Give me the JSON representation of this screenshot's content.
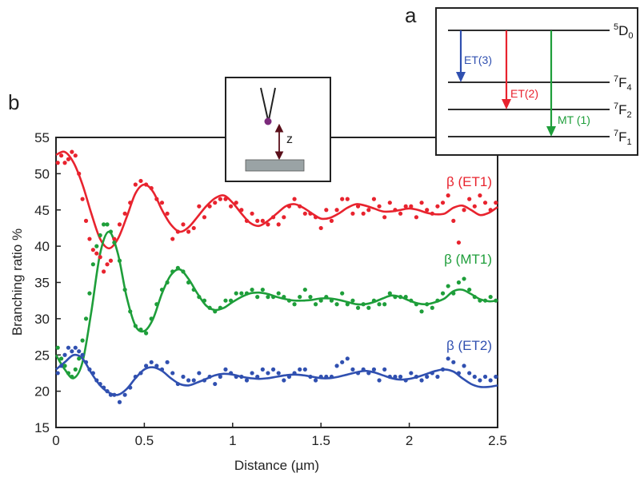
{
  "panel_labels": {
    "a": "a",
    "b": "b"
  },
  "colors": {
    "et1": "#e8232e",
    "mt1": "#1e9e3a",
    "et2": "#3050b0",
    "dark_arrow": "#5a0f1a",
    "substrate": "#9aa3a5",
    "tip_dot": "#7b2a7b"
  },
  "inset": {
    "z_label": "z"
  },
  "level_diagram": {
    "levels": [
      {
        "sup": "5",
        "main": "D",
        "sub": "0"
      },
      {
        "sup": "7",
        "main": "F",
        "sub": "4"
      },
      {
        "sup": "7",
        "main": "F",
        "sub": "2"
      },
      {
        "sup": "7",
        "main": "F",
        "sub": "1"
      }
    ],
    "transitions": [
      {
        "label": "ET(3)",
        "color": "#3050b0"
      },
      {
        "label": "ET(2)",
        "color": "#e8232e"
      },
      {
        "label": "MT (1)",
        "color": "#1e9e3a"
      }
    ]
  },
  "chart_data": {
    "type": "scatter",
    "title": "",
    "xlabel": "Distance (µm)",
    "ylabel": "Branching ratio %",
    "xlim": [
      0,
      2.5
    ],
    "ylim": [
      15,
      55
    ],
    "xticks": [
      "0",
      "0.5",
      "1",
      "1.5",
      "2",
      "2.5"
    ],
    "yticks": [
      "15",
      "20",
      "25",
      "30",
      "35",
      "40",
      "45",
      "50",
      "55"
    ],
    "grid": false,
    "series": [
      {
        "name": "β (ET1)",
        "color": "#e8232e",
        "fit": {
          "x": [
            0,
            0.05,
            0.1,
            0.15,
            0.2,
            0.25,
            0.3,
            0.35,
            0.4,
            0.45,
            0.5,
            0.55,
            0.6,
            0.65,
            0.7,
            0.75,
            0.8,
            0.85,
            0.9,
            0.95,
            1.0,
            1.05,
            1.1,
            1.15,
            1.2,
            1.25,
            1.3,
            1.35,
            1.4,
            1.45,
            1.5,
            1.55,
            1.6,
            1.65,
            1.7,
            1.75,
            1.8,
            1.85,
            1.9,
            1.95,
            2.0,
            2.05,
            2.1,
            2.15,
            2.2,
            2.25,
            2.3,
            2.35,
            2.4,
            2.45,
            2.5
          ],
          "y": [
            52.6,
            53.0,
            51.5,
            48.5,
            44.5,
            41.0,
            39.7,
            41.0,
            44.0,
            47.3,
            48.5,
            47.5,
            45.0,
            43.0,
            42.0,
            42.6,
            44.0,
            45.5,
            46.6,
            47.0,
            46.0,
            44.5,
            43.2,
            42.8,
            43.5,
            44.5,
            45.5,
            45.8,
            45.3,
            44.5,
            43.8,
            43.9,
            44.5,
            45.3,
            45.8,
            45.6,
            45.2,
            44.8,
            44.8,
            45.0,
            45.2,
            45.0,
            44.6,
            44.4,
            44.5,
            45.3,
            45.6,
            45.0,
            44.3,
            44.6,
            45.4
          ]
        },
        "points": {
          "x": [
            0.01,
            0.03,
            0.05,
            0.07,
            0.09,
            0.11,
            0.13,
            0.15,
            0.17,
            0.19,
            0.21,
            0.23,
            0.25,
            0.27,
            0.29,
            0.31,
            0.33,
            0.36,
            0.39,
            0.42,
            0.45,
            0.48,
            0.51,
            0.54,
            0.57,
            0.6,
            0.63,
            0.66,
            0.69,
            0.72,
            0.75,
            0.78,
            0.81,
            0.84,
            0.87,
            0.9,
            0.93,
            0.96,
            0.99,
            1.02,
            1.05,
            1.08,
            1.11,
            1.14,
            1.17,
            1.2,
            1.23,
            1.26,
            1.29,
            1.32,
            1.35,
            1.38,
            1.41,
            1.44,
            1.47,
            1.5,
            1.53,
            1.56,
            1.59,
            1.62,
            1.65,
            1.68,
            1.71,
            1.74,
            1.77,
            1.8,
            1.83,
            1.86,
            1.89,
            1.92,
            1.95,
            1.98,
            2.01,
            2.04,
            2.07,
            2.1,
            2.13,
            2.16,
            2.19,
            2.22,
            2.25,
            2.28,
            2.31,
            2.34,
            2.37,
            2.4,
            2.43,
            2.46,
            2.49
          ],
          "y": [
            51.5,
            52.5,
            51.5,
            52.0,
            53.0,
            52.5,
            50.0,
            46.5,
            43.5,
            41.0,
            39.5,
            39.0,
            38.5,
            36.5,
            37.5,
            38.0,
            41.0,
            43.0,
            44.5,
            46.0,
            48.5,
            49.0,
            48.5,
            48.0,
            46.5,
            46.0,
            44.5,
            41.0,
            42.0,
            43.0,
            42.0,
            42.5,
            45.5,
            44.0,
            45.5,
            46.0,
            46.5,
            46.5,
            45.5,
            46.0,
            45.0,
            43.5,
            44.5,
            43.5,
            43.5,
            43.0,
            44.0,
            43.0,
            44.0,
            45.5,
            46.5,
            45.5,
            44.5,
            44.5,
            44.0,
            42.5,
            45.0,
            43.5,
            45.0,
            46.5,
            46.5,
            44.5,
            45.5,
            44.5,
            45.0,
            46.5,
            45.5,
            44.0,
            46.0,
            45.0,
            44.5,
            45.5,
            45.5,
            44.0,
            46.0,
            45.0,
            44.5,
            45.5,
            46.0,
            47.0,
            43.5,
            40.5,
            45.0,
            46.5,
            45.5,
            47.0,
            46.0,
            45.0,
            46.0
          ]
        }
      },
      {
        "name": "β (MT1)",
        "color": "#1e9e3a",
        "fit": {
          "x": [
            0,
            0.05,
            0.1,
            0.15,
            0.2,
            0.25,
            0.3,
            0.35,
            0.4,
            0.45,
            0.5,
            0.55,
            0.6,
            0.65,
            0.7,
            0.75,
            0.8,
            0.85,
            0.9,
            0.95,
            1.0,
            1.05,
            1.1,
            1.15,
            1.2,
            1.25,
            1.3,
            1.35,
            1.4,
            1.45,
            1.5,
            1.55,
            1.6,
            1.65,
            1.7,
            1.75,
            1.8,
            1.85,
            1.9,
            1.95,
            2.0,
            2.05,
            2.1,
            2.15,
            2.2,
            2.25,
            2.3,
            2.35,
            2.4,
            2.45,
            2.5
          ],
          "y": [
            25.0,
            23.0,
            21.8,
            24.0,
            31.0,
            39.0,
            42.0,
            39.0,
            33.0,
            29.0,
            28.3,
            30.0,
            33.5,
            36.0,
            36.8,
            35.5,
            33.5,
            31.8,
            31.2,
            31.5,
            32.3,
            33.0,
            33.5,
            33.6,
            33.4,
            33.0,
            32.7,
            32.5,
            32.5,
            32.6,
            32.8,
            32.8,
            32.6,
            32.3,
            32.0,
            32.0,
            32.3,
            32.8,
            33.2,
            33.0,
            32.5,
            32.1,
            32.0,
            32.3,
            32.8,
            33.8,
            34.0,
            33.4,
            32.7,
            32.4,
            32.5
          ]
        },
        "points": {
          "x": [
            0.01,
            0.03,
            0.05,
            0.07,
            0.09,
            0.11,
            0.13,
            0.15,
            0.17,
            0.19,
            0.21,
            0.23,
            0.25,
            0.27,
            0.29,
            0.31,
            0.33,
            0.36,
            0.39,
            0.42,
            0.45,
            0.48,
            0.51,
            0.54,
            0.57,
            0.6,
            0.63,
            0.66,
            0.69,
            0.72,
            0.75,
            0.78,
            0.81,
            0.84,
            0.87,
            0.9,
            0.93,
            0.96,
            0.99,
            1.02,
            1.05,
            1.08,
            1.11,
            1.14,
            1.17,
            1.2,
            1.23,
            1.26,
            1.29,
            1.32,
            1.35,
            1.38,
            1.41,
            1.44,
            1.47,
            1.5,
            1.53,
            1.56,
            1.59,
            1.62,
            1.65,
            1.68,
            1.71,
            1.74,
            1.77,
            1.8,
            1.83,
            1.86,
            1.89,
            1.92,
            1.95,
            1.98,
            2.01,
            2.04,
            2.07,
            2.1,
            2.13,
            2.16,
            2.19,
            2.22,
            2.25,
            2.28,
            2.31,
            2.34,
            2.37,
            2.4,
            2.43,
            2.46,
            2.49
          ],
          "y": [
            26.0,
            24.5,
            23.5,
            22.5,
            22.0,
            23.0,
            24.5,
            27.0,
            30.0,
            33.5,
            37.5,
            40.0,
            41.5,
            43.0,
            43.0,
            42.0,
            40.5,
            38.0,
            34.0,
            31.0,
            29.0,
            28.5,
            28.0,
            30.0,
            32.0,
            34.0,
            35.0,
            36.5,
            37.0,
            36.5,
            35.0,
            34.0,
            33.0,
            32.5,
            31.5,
            31.0,
            31.5,
            32.5,
            32.5,
            33.5,
            33.5,
            33.5,
            34.0,
            33.0,
            34.0,
            33.0,
            33.0,
            33.5,
            33.0,
            32.5,
            32.0,
            33.0,
            34.0,
            33.0,
            32.0,
            32.5,
            33.0,
            32.5,
            32.0,
            33.5,
            32.0,
            32.5,
            31.5,
            32.0,
            31.5,
            32.5,
            32.0,
            32.0,
            33.5,
            33.0,
            33.0,
            33.0,
            32.5,
            32.0,
            31.0,
            32.0,
            31.5,
            32.5,
            33.5,
            34.5,
            33.5,
            35.0,
            35.5,
            34.0,
            33.0,
            32.5,
            32.5,
            33.0,
            32.5
          ]
        }
      },
      {
        "name": "β (ET2)",
        "color": "#3050b0",
        "fit": {
          "x": [
            0,
            0.05,
            0.1,
            0.15,
            0.2,
            0.25,
            0.3,
            0.35,
            0.4,
            0.45,
            0.5,
            0.55,
            0.6,
            0.65,
            0.7,
            0.75,
            0.8,
            0.85,
            0.9,
            0.95,
            1.0,
            1.05,
            1.1,
            1.15,
            1.2,
            1.25,
            1.3,
            1.35,
            1.4,
            1.45,
            1.5,
            1.55,
            1.6,
            1.65,
            1.7,
            1.75,
            1.8,
            1.85,
            1.9,
            1.95,
            2.0,
            2.05,
            2.1,
            2.15,
            2.2,
            2.25,
            2.3,
            2.35,
            2.4,
            2.45,
            2.5
          ],
          "y": [
            23.0,
            24.0,
            25.0,
            24.5,
            22.5,
            20.8,
            19.8,
            19.5,
            20.3,
            21.8,
            23.0,
            23.3,
            22.8,
            21.8,
            21.0,
            20.8,
            21.2,
            21.7,
            22.2,
            22.4,
            22.3,
            22.0,
            21.8,
            21.7,
            21.8,
            22.0,
            22.2,
            22.3,
            22.2,
            22.0,
            21.8,
            21.8,
            22.0,
            22.3,
            22.6,
            22.8,
            22.6,
            22.2,
            21.8,
            21.6,
            21.7,
            22.0,
            22.4,
            22.8,
            23.0,
            22.7,
            21.8,
            21.0,
            20.6,
            20.6,
            20.8
          ]
        },
        "points": {
          "x": [
            0.01,
            0.03,
            0.05,
            0.07,
            0.09,
            0.11,
            0.13,
            0.15,
            0.17,
            0.19,
            0.21,
            0.23,
            0.25,
            0.27,
            0.29,
            0.31,
            0.33,
            0.36,
            0.39,
            0.42,
            0.45,
            0.48,
            0.51,
            0.54,
            0.57,
            0.6,
            0.63,
            0.66,
            0.69,
            0.72,
            0.75,
            0.78,
            0.81,
            0.84,
            0.87,
            0.9,
            0.93,
            0.96,
            0.99,
            1.02,
            1.05,
            1.08,
            1.11,
            1.14,
            1.17,
            1.2,
            1.23,
            1.26,
            1.29,
            1.32,
            1.35,
            1.38,
            1.41,
            1.44,
            1.47,
            1.5,
            1.53,
            1.56,
            1.59,
            1.62,
            1.65,
            1.68,
            1.71,
            1.74,
            1.77,
            1.8,
            1.83,
            1.86,
            1.89,
            1.92,
            1.95,
            1.98,
            2.01,
            2.04,
            2.07,
            2.1,
            2.13,
            2.16,
            2.19,
            2.22,
            2.25,
            2.28,
            2.31,
            2.34,
            2.37,
            2.4,
            2.43,
            2.46,
            2.49
          ],
          "y": [
            22.5,
            23.5,
            25.0,
            26.0,
            25.5,
            26.0,
            25.5,
            25.0,
            24.0,
            23.0,
            22.5,
            21.5,
            21.0,
            20.5,
            20.0,
            19.5,
            19.5,
            18.5,
            19.5,
            20.5,
            22.0,
            22.5,
            23.5,
            24.0,
            23.5,
            23.0,
            24.0,
            22.5,
            21.0,
            22.0,
            21.5,
            21.5,
            22.5,
            21.5,
            22.0,
            21.0,
            22.0,
            23.0,
            22.5,
            22.0,
            22.0,
            21.5,
            22.5,
            22.0,
            23.0,
            22.5,
            23.0,
            22.5,
            21.5,
            22.0,
            22.5,
            23.0,
            23.0,
            22.0,
            21.5,
            22.0,
            22.0,
            22.0,
            23.5,
            24.0,
            24.5,
            23.0,
            22.5,
            23.0,
            22.5,
            23.0,
            21.5,
            23.0,
            22.0,
            22.0,
            22.0,
            21.5,
            22.5,
            22.0,
            21.5,
            22.0,
            22.5,
            22.0,
            23.0,
            24.5,
            24.0,
            22.5,
            23.5,
            22.5,
            22.0,
            21.5,
            22.0,
            21.5,
            22.0
          ]
        }
      }
    ]
  }
}
